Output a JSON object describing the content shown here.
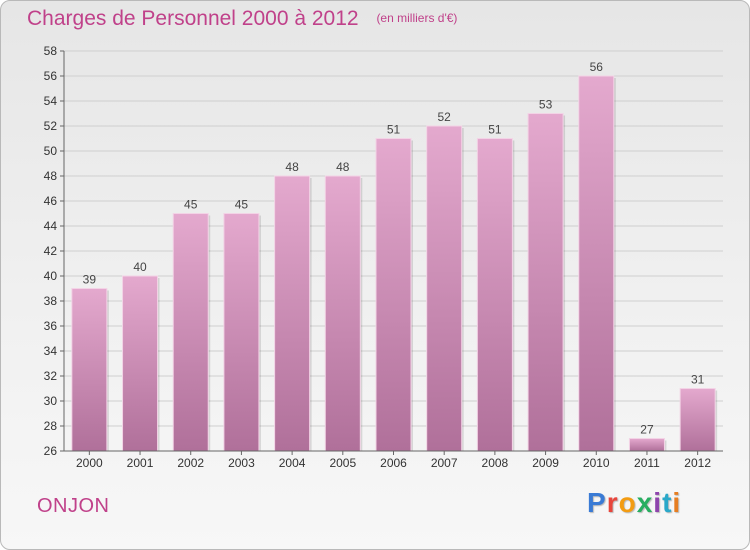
{
  "header": {
    "title": "Charges de Personnel 2000 à 2012",
    "subtitle": "(en milliers d'€)"
  },
  "footer": {
    "commune": "ONJON",
    "logo_letters": [
      "P",
      "r",
      "o",
      "x",
      "i",
      "t",
      "i"
    ]
  },
  "colors": {
    "title": "#c0418a",
    "bar_top": "#e4a9ce",
    "bar_bottom": "#b0709a",
    "grid": "#cfcfcf",
    "axis": "#666666"
  },
  "chart_data": {
    "type": "bar",
    "title": "Charges de Personnel 2000 à 2012",
    "subtitle": "(en milliers d'€)",
    "categories": [
      "2000",
      "2001",
      "2002",
      "2003",
      "2004",
      "2005",
      "2006",
      "2007",
      "2008",
      "2009",
      "2010",
      "2011",
      "2012"
    ],
    "values": [
      39,
      40,
      45,
      45,
      48,
      48,
      51,
      52,
      51,
      53,
      56,
      27,
      31
    ],
    "ylim": [
      26,
      58
    ],
    "yticks": [
      26,
      28,
      30,
      32,
      34,
      36,
      38,
      40,
      42,
      44,
      46,
      48,
      50,
      52,
      54,
      56,
      58
    ],
    "grid": true,
    "data_labels": true,
    "xlabel": "",
    "ylabel": ""
  }
}
